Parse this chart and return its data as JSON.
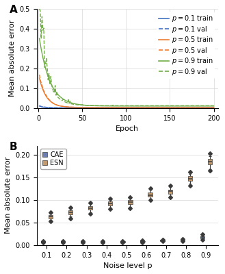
{
  "panel_A": {
    "colors": {
      "p01": "#4472c4",
      "p05": "#ed7d31",
      "p09": "#70ad47"
    },
    "ylim": [
      0,
      0.5
    ],
    "xlim": [
      -2,
      205
    ],
    "xlabel": "Epoch",
    "ylabel": "Mean absolute error",
    "yticks": [
      0.0,
      0.1,
      0.2,
      0.3,
      0.4,
      0.5
    ],
    "xticks": [
      0,
      50,
      100,
      150,
      200
    ]
  },
  "panel_B": {
    "noise_levels": [
      0.1,
      0.2,
      0.3,
      0.4,
      0.5,
      0.6,
      0.7,
      0.8,
      0.9
    ],
    "CAE_median": [
      0.007,
      0.007,
      0.007,
      0.007,
      0.007,
      0.008,
      0.01,
      0.011,
      0.018
    ],
    "CAE_q1": [
      0.006,
      0.006,
      0.006,
      0.006,
      0.006,
      0.007,
      0.009,
      0.01,
      0.015
    ],
    "CAE_q3": [
      0.008,
      0.008,
      0.008,
      0.008,
      0.008,
      0.009,
      0.011,
      0.012,
      0.02
    ],
    "CAE_whislo": [
      0.0055,
      0.0055,
      0.0055,
      0.0055,
      0.0055,
      0.0065,
      0.0085,
      0.0095,
      0.013
    ],
    "CAE_whishi": [
      0.0085,
      0.0085,
      0.0085,
      0.0085,
      0.0085,
      0.0095,
      0.0115,
      0.013,
      0.022
    ],
    "CAE_flier_lo": [
      0.005,
      0.005,
      0.005,
      0.005,
      0.005,
      0.006,
      0.008,
      0.009,
      0.012
    ],
    "CAE_flier_hi": [
      0.009,
      0.009,
      0.009,
      0.009,
      0.009,
      0.0105,
      0.0125,
      0.014,
      0.024
    ],
    "ESN_median": [
      0.063,
      0.073,
      0.082,
      0.092,
      0.095,
      0.111,
      0.119,
      0.147,
      0.184
    ],
    "ESN_q1": [
      0.059,
      0.068,
      0.078,
      0.088,
      0.09,
      0.107,
      0.114,
      0.142,
      0.178
    ],
    "ESN_q3": [
      0.067,
      0.077,
      0.086,
      0.096,
      0.099,
      0.116,
      0.123,
      0.152,
      0.19
    ],
    "ESN_whislo": [
      0.055,
      0.063,
      0.073,
      0.083,
      0.085,
      0.102,
      0.109,
      0.136,
      0.168
    ],
    "ESN_whishi": [
      0.07,
      0.081,
      0.091,
      0.1,
      0.103,
      0.122,
      0.129,
      0.157,
      0.197
    ],
    "ESN_flier_lo": [
      0.052,
      0.059,
      0.07,
      0.08,
      0.082,
      0.099,
      0.106,
      0.132,
      0.165
    ],
    "ESN_flier_hi": [
      0.073,
      0.083,
      0.094,
      0.103,
      0.106,
      0.125,
      0.132,
      0.161,
      0.202
    ],
    "CAE_color": "#6b7fb5",
    "ESN_color": "#c49a6c",
    "ylim": [
      0,
      0.22
    ],
    "xlabel": "Noise level p",
    "ylabel": "Mean absolute error",
    "yticks": [
      0.0,
      0.05,
      0.1,
      0.15,
      0.2
    ]
  },
  "label_fontsize": 8,
  "tick_fontsize": 7,
  "legend_fontsize": 7
}
